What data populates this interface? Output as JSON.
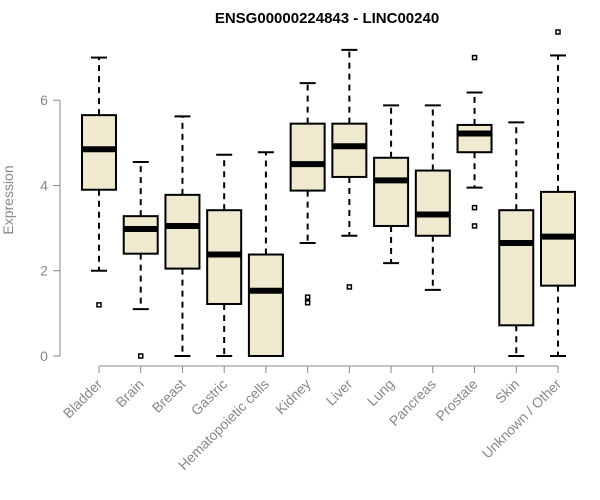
{
  "chart_data": {
    "type": "boxplot",
    "title": "ENSG00000224843 - LINC00240",
    "ylabel": "Expression",
    "ylim": [
      0,
      7.6
    ],
    "yticks": [
      0,
      2,
      4,
      6
    ],
    "box_color": "#efe9cf",
    "categories": [
      "Bladder",
      "Brain",
      "Breast",
      "Gastric",
      "Hematopoietic cells",
      "Kidney",
      "Liver",
      "Lung",
      "Pancreas",
      "Prostate",
      "Skin",
      "Unknown / Other"
    ],
    "boxes": [
      {
        "min": 2.0,
        "q1": 3.9,
        "median": 4.85,
        "q3": 5.65,
        "max": 7.0,
        "outliers": [
          1.2
        ]
      },
      {
        "min": 1.1,
        "q1": 2.4,
        "median": 2.98,
        "q3": 3.28,
        "max": 4.55,
        "outliers": [
          0.0
        ]
      },
      {
        "min": 0.0,
        "q1": 2.05,
        "median": 3.05,
        "q3": 3.78,
        "max": 5.62,
        "outliers": []
      },
      {
        "min": 0.0,
        "q1": 1.22,
        "median": 2.38,
        "q3": 3.42,
        "max": 4.72,
        "outliers": []
      },
      {
        "min": 0.0,
        "q1": 0.0,
        "median": 1.53,
        "q3": 2.38,
        "max": 4.78,
        "outliers": []
      },
      {
        "min": 2.65,
        "q1": 3.88,
        "median": 4.5,
        "q3": 5.45,
        "max": 6.4,
        "outliers": [
          1.25,
          1.38
        ]
      },
      {
        "min": 2.82,
        "q1": 4.2,
        "median": 4.92,
        "q3": 5.45,
        "max": 7.18,
        "outliers": [
          1.62
        ]
      },
      {
        "min": 2.18,
        "q1": 3.05,
        "median": 4.12,
        "q3": 4.65,
        "max": 5.88,
        "outliers": []
      },
      {
        "min": 1.55,
        "q1": 2.82,
        "median": 3.32,
        "q3": 4.35,
        "max": 5.88,
        "outliers": []
      },
      {
        "min": 3.95,
        "q1": 4.78,
        "median": 5.22,
        "q3": 5.42,
        "max": 6.18,
        "outliers": [
          7.0,
          3.48,
          3.05
        ]
      },
      {
        "min": 0.0,
        "q1": 0.72,
        "median": 2.65,
        "q3": 3.42,
        "max": 5.48,
        "outliers": []
      },
      {
        "min": 0.0,
        "q1": 1.65,
        "median": 2.8,
        "q3": 3.85,
        "max": 7.05,
        "outliers": [
          7.6
        ]
      }
    ]
  }
}
